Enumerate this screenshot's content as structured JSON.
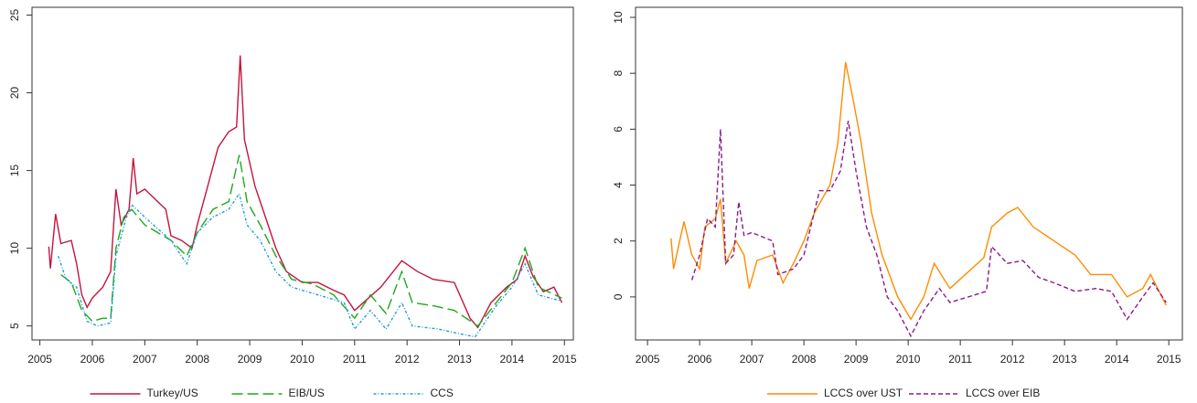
{
  "chart_data": [
    {
      "type": "line",
      "xlim": [
        2004.85,
        2015.17
      ],
      "ylim": [
        4.1,
        25.5
      ],
      "xticks": [
        2005,
        2006,
        2007,
        2008,
        2009,
        2010,
        2011,
        2012,
        2013,
        2014,
        2015
      ],
      "yticks": [
        5,
        10,
        15,
        20,
        25
      ],
      "legend": "bottom",
      "series": [
        {
          "name": "Turkey/US",
          "color": "#c4133f",
          "dash": "solid",
          "x": [
            2005.17,
            2005.2,
            2005.3,
            2005.4,
            2005.6,
            2005.7,
            2005.8,
            2005.9,
            2006.0,
            2006.2,
            2006.35,
            2006.45,
            2006.55,
            2006.7,
            2006.78,
            2006.85,
            2007.0,
            2007.4,
            2007.5,
            2007.7,
            2007.9,
            2008.0,
            2008.2,
            2008.4,
            2008.6,
            2008.75,
            2008.82,
            2008.9,
            2009.0,
            2009.1,
            2009.3,
            2009.5,
            2009.7,
            2010.0,
            2010.3,
            2010.6,
            2010.8,
            2011.0,
            2011.5,
            2011.9,
            2012.2,
            2012.5,
            2012.9,
            2013.2,
            2013.35,
            2013.6,
            2013.9,
            2014.1,
            2014.25,
            2014.4,
            2014.6,
            2014.8,
            2014.95
          ],
          "values": [
            10.1,
            8.7,
            12.2,
            10.3,
            10.5,
            9.0,
            7.0,
            6.2,
            6.8,
            7.5,
            8.5,
            13.8,
            11.5,
            12.5,
            15.8,
            13.5,
            13.8,
            12.5,
            10.8,
            10.5,
            10.0,
            11.5,
            14.0,
            16.5,
            17.5,
            17.8,
            22.4,
            17.0,
            15.5,
            14.0,
            12.0,
            10.0,
            8.5,
            7.8,
            7.8,
            7.3,
            7.0,
            6.0,
            7.5,
            9.2,
            8.5,
            8.0,
            7.8,
            5.5,
            4.9,
            6.5,
            7.5,
            8.0,
            9.5,
            8.2,
            7.2,
            7.5,
            6.5
          ]
        },
        {
          "name": "EIB/US",
          "color": "#1fa81f",
          "dash": "long",
          "x": [
            2005.4,
            2005.6,
            2005.8,
            2006.0,
            2006.2,
            2006.35,
            2006.45,
            2006.6,
            2006.75,
            2007.0,
            2007.5,
            2007.8,
            2008.0,
            2008.3,
            2008.6,
            2008.8,
            2008.95,
            2009.2,
            2009.5,
            2009.8,
            2010.2,
            2010.6,
            2011.0,
            2011.3,
            2011.6,
            2011.9,
            2012.1,
            2012.5,
            2012.9,
            2013.35,
            2013.7,
            2014.0,
            2014.25,
            2014.5,
            2014.95
          ],
          "values": [
            8.3,
            7.8,
            6.0,
            5.3,
            5.5,
            5.5,
            10.0,
            12.0,
            12.5,
            11.5,
            10.5,
            9.5,
            11.0,
            12.5,
            13.0,
            16.0,
            13.0,
            11.5,
            9.5,
            8.0,
            7.7,
            7.0,
            5.5,
            7.0,
            5.8,
            8.5,
            6.5,
            6.3,
            6.0,
            5.0,
            6.5,
            7.8,
            10.0,
            7.5,
            6.8
          ]
        },
        {
          "name": "CCS",
          "color": "#1f9fd0",
          "dash": "short",
          "x": [
            2005.35,
            2005.5,
            2005.7,
            2005.9,
            2006.1,
            2006.35,
            2006.45,
            2006.65,
            2006.75,
            2007.0,
            2007.5,
            2007.8,
            2008.0,
            2008.3,
            2008.6,
            2008.8,
            2008.95,
            2009.2,
            2009.5,
            2009.8,
            2010.3,
            2010.8,
            2011.0,
            2011.3,
            2011.6,
            2011.9,
            2012.1,
            2012.6,
            2013.0,
            2013.3,
            2013.7,
            2014.0,
            2014.25,
            2014.5,
            2014.95
          ],
          "values": [
            9.5,
            8.0,
            7.5,
            5.3,
            5.0,
            5.2,
            9.5,
            12.0,
            12.8,
            12.0,
            10.5,
            9.0,
            11.0,
            12.0,
            12.5,
            13.5,
            11.5,
            10.5,
            8.5,
            7.5,
            7.0,
            6.5,
            4.8,
            6.0,
            4.8,
            6.5,
            5.0,
            4.8,
            4.5,
            4.3,
            6.3,
            7.5,
            9.0,
            7.0,
            6.6
          ]
        }
      ]
    },
    {
      "type": "line",
      "xlim": [
        2004.77,
        2015.26
      ],
      "ylim": [
        -1.54,
        10.36
      ],
      "xticks": [
        2005,
        2006,
        2007,
        2008,
        2009,
        2010,
        2011,
        2012,
        2013,
        2014,
        2015
      ],
      "yticks": [
        0,
        2,
        4,
        6,
        8,
        10
      ],
      "legend": "bottom",
      "series": [
        {
          "name": "LCCS over UST",
          "color": "#ff8c00",
          "dash": "solid",
          "x": [
            2005.45,
            2005.5,
            2005.7,
            2005.85,
            2006.0,
            2006.1,
            2006.3,
            2006.4,
            2006.5,
            2006.7,
            2006.85,
            2006.95,
            2007.1,
            2007.4,
            2007.6,
            2007.8,
            2008.0,
            2008.2,
            2008.5,
            2008.65,
            2008.8,
            2008.95,
            2009.1,
            2009.3,
            2009.5,
            2009.8,
            2010.05,
            2010.3,
            2010.5,
            2010.8,
            2011.45,
            2011.6,
            2011.9,
            2012.1,
            2012.4,
            2012.8,
            2013.2,
            2013.5,
            2013.9,
            2014.2,
            2014.5,
            2014.65,
            2014.95
          ],
          "values": [
            2.1,
            1.0,
            2.7,
            1.5,
            1.0,
            2.5,
            2.8,
            3.5,
            1.2,
            2.0,
            1.5,
            0.3,
            1.3,
            1.5,
            0.5,
            1.2,
            2.0,
            3.0,
            4.0,
            5.5,
            8.4,
            7.0,
            5.5,
            3.0,
            1.5,
            0.0,
            -0.8,
            0.0,
            1.2,
            0.3,
            1.4,
            2.5,
            3.0,
            3.2,
            2.5,
            2.0,
            1.5,
            0.8,
            0.8,
            0.0,
            0.3,
            0.8,
            -0.3
          ]
        },
        {
          "name": "LCCS over EIB",
          "color": "#8b1a8b",
          "dash": "dashed",
          "x": [
            2005.85,
            2006.0,
            2006.15,
            2006.3,
            2006.4,
            2006.5,
            2006.65,
            2006.75,
            2006.85,
            2007.0,
            2007.4,
            2007.5,
            2007.8,
            2008.0,
            2008.3,
            2008.5,
            2008.7,
            2008.85,
            2009.0,
            2009.2,
            2009.4,
            2009.6,
            2009.8,
            2010.05,
            2010.3,
            2010.6,
            2010.8,
            2011.5,
            2011.6,
            2011.9,
            2012.2,
            2012.5,
            2012.8,
            2013.2,
            2013.6,
            2013.9,
            2014.2,
            2014.5,
            2014.7,
            2014.95
          ],
          "values": [
            0.6,
            1.5,
            2.8,
            2.5,
            6.0,
            1.2,
            1.5,
            3.4,
            2.2,
            2.3,
            2.0,
            0.8,
            1.0,
            1.5,
            3.8,
            3.8,
            4.5,
            6.3,
            4.5,
            2.5,
            1.5,
            0.0,
            -0.5,
            -1.4,
            -0.5,
            0.3,
            -0.2,
            0.2,
            1.8,
            1.2,
            1.3,
            0.7,
            0.5,
            0.2,
            0.3,
            0.2,
            -0.8,
            0.0,
            0.5,
            -0.2
          ]
        }
      ]
    }
  ]
}
